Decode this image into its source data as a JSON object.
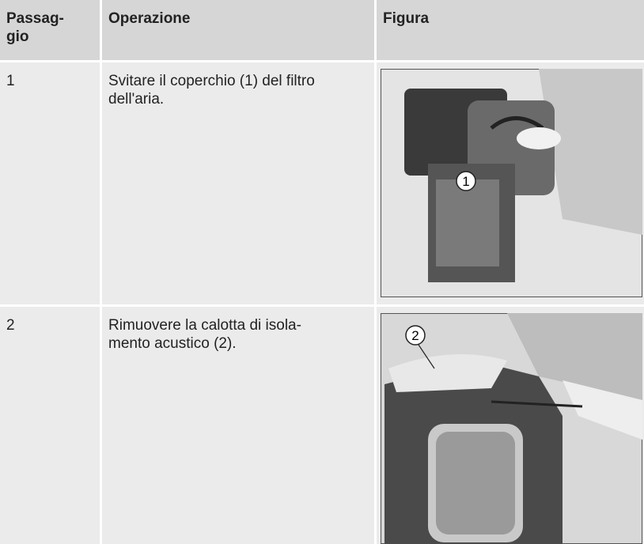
{
  "table": {
    "header": [
      "Passag-\ngio",
      "Operazione",
      "Figura"
    ],
    "rows": [
      {
        "step": "1",
        "operation": "Svitare il coperchio (1) del filtro\ndell'aria.",
        "callout": "1"
      },
      {
        "step": "2",
        "operation": "Rimuovere la calotta di isola-\nmento acustico (2).",
        "callout": "2"
      }
    ]
  }
}
